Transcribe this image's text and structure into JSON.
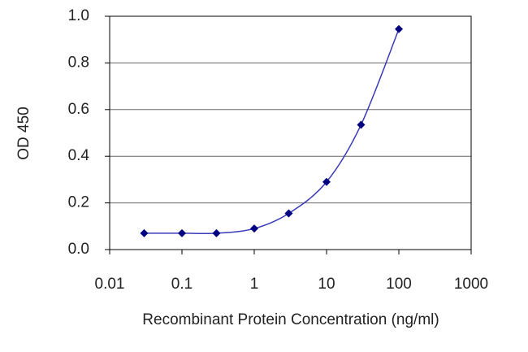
{
  "chart_data": {
    "type": "line",
    "x_label": "Recombinant Protein Concentration (ng/ml)",
    "y_label": "OD 450",
    "x": [
      0.03,
      0.1,
      0.3,
      1,
      3,
      10,
      30,
      100
    ],
    "values": [
      0.07,
      0.07,
      0.07,
      0.09,
      0.155,
      0.29,
      0.535,
      0.945
    ],
    "color": "#000080",
    "line_color": "#3a3ab8",
    "x_log": true,
    "xlim": [
      0.01,
      1000
    ],
    "xticks": [
      0.01,
      0.1,
      1,
      10,
      100,
      1000
    ],
    "ylim": [
      0,
      1
    ],
    "yticks": [
      {
        "value": 0,
        "label": "0.0"
      },
      0.2,
      0.4,
      0.6,
      0.8,
      {
        "value": 1,
        "label": "1.0"
      }
    ],
    "grid": true
  }
}
